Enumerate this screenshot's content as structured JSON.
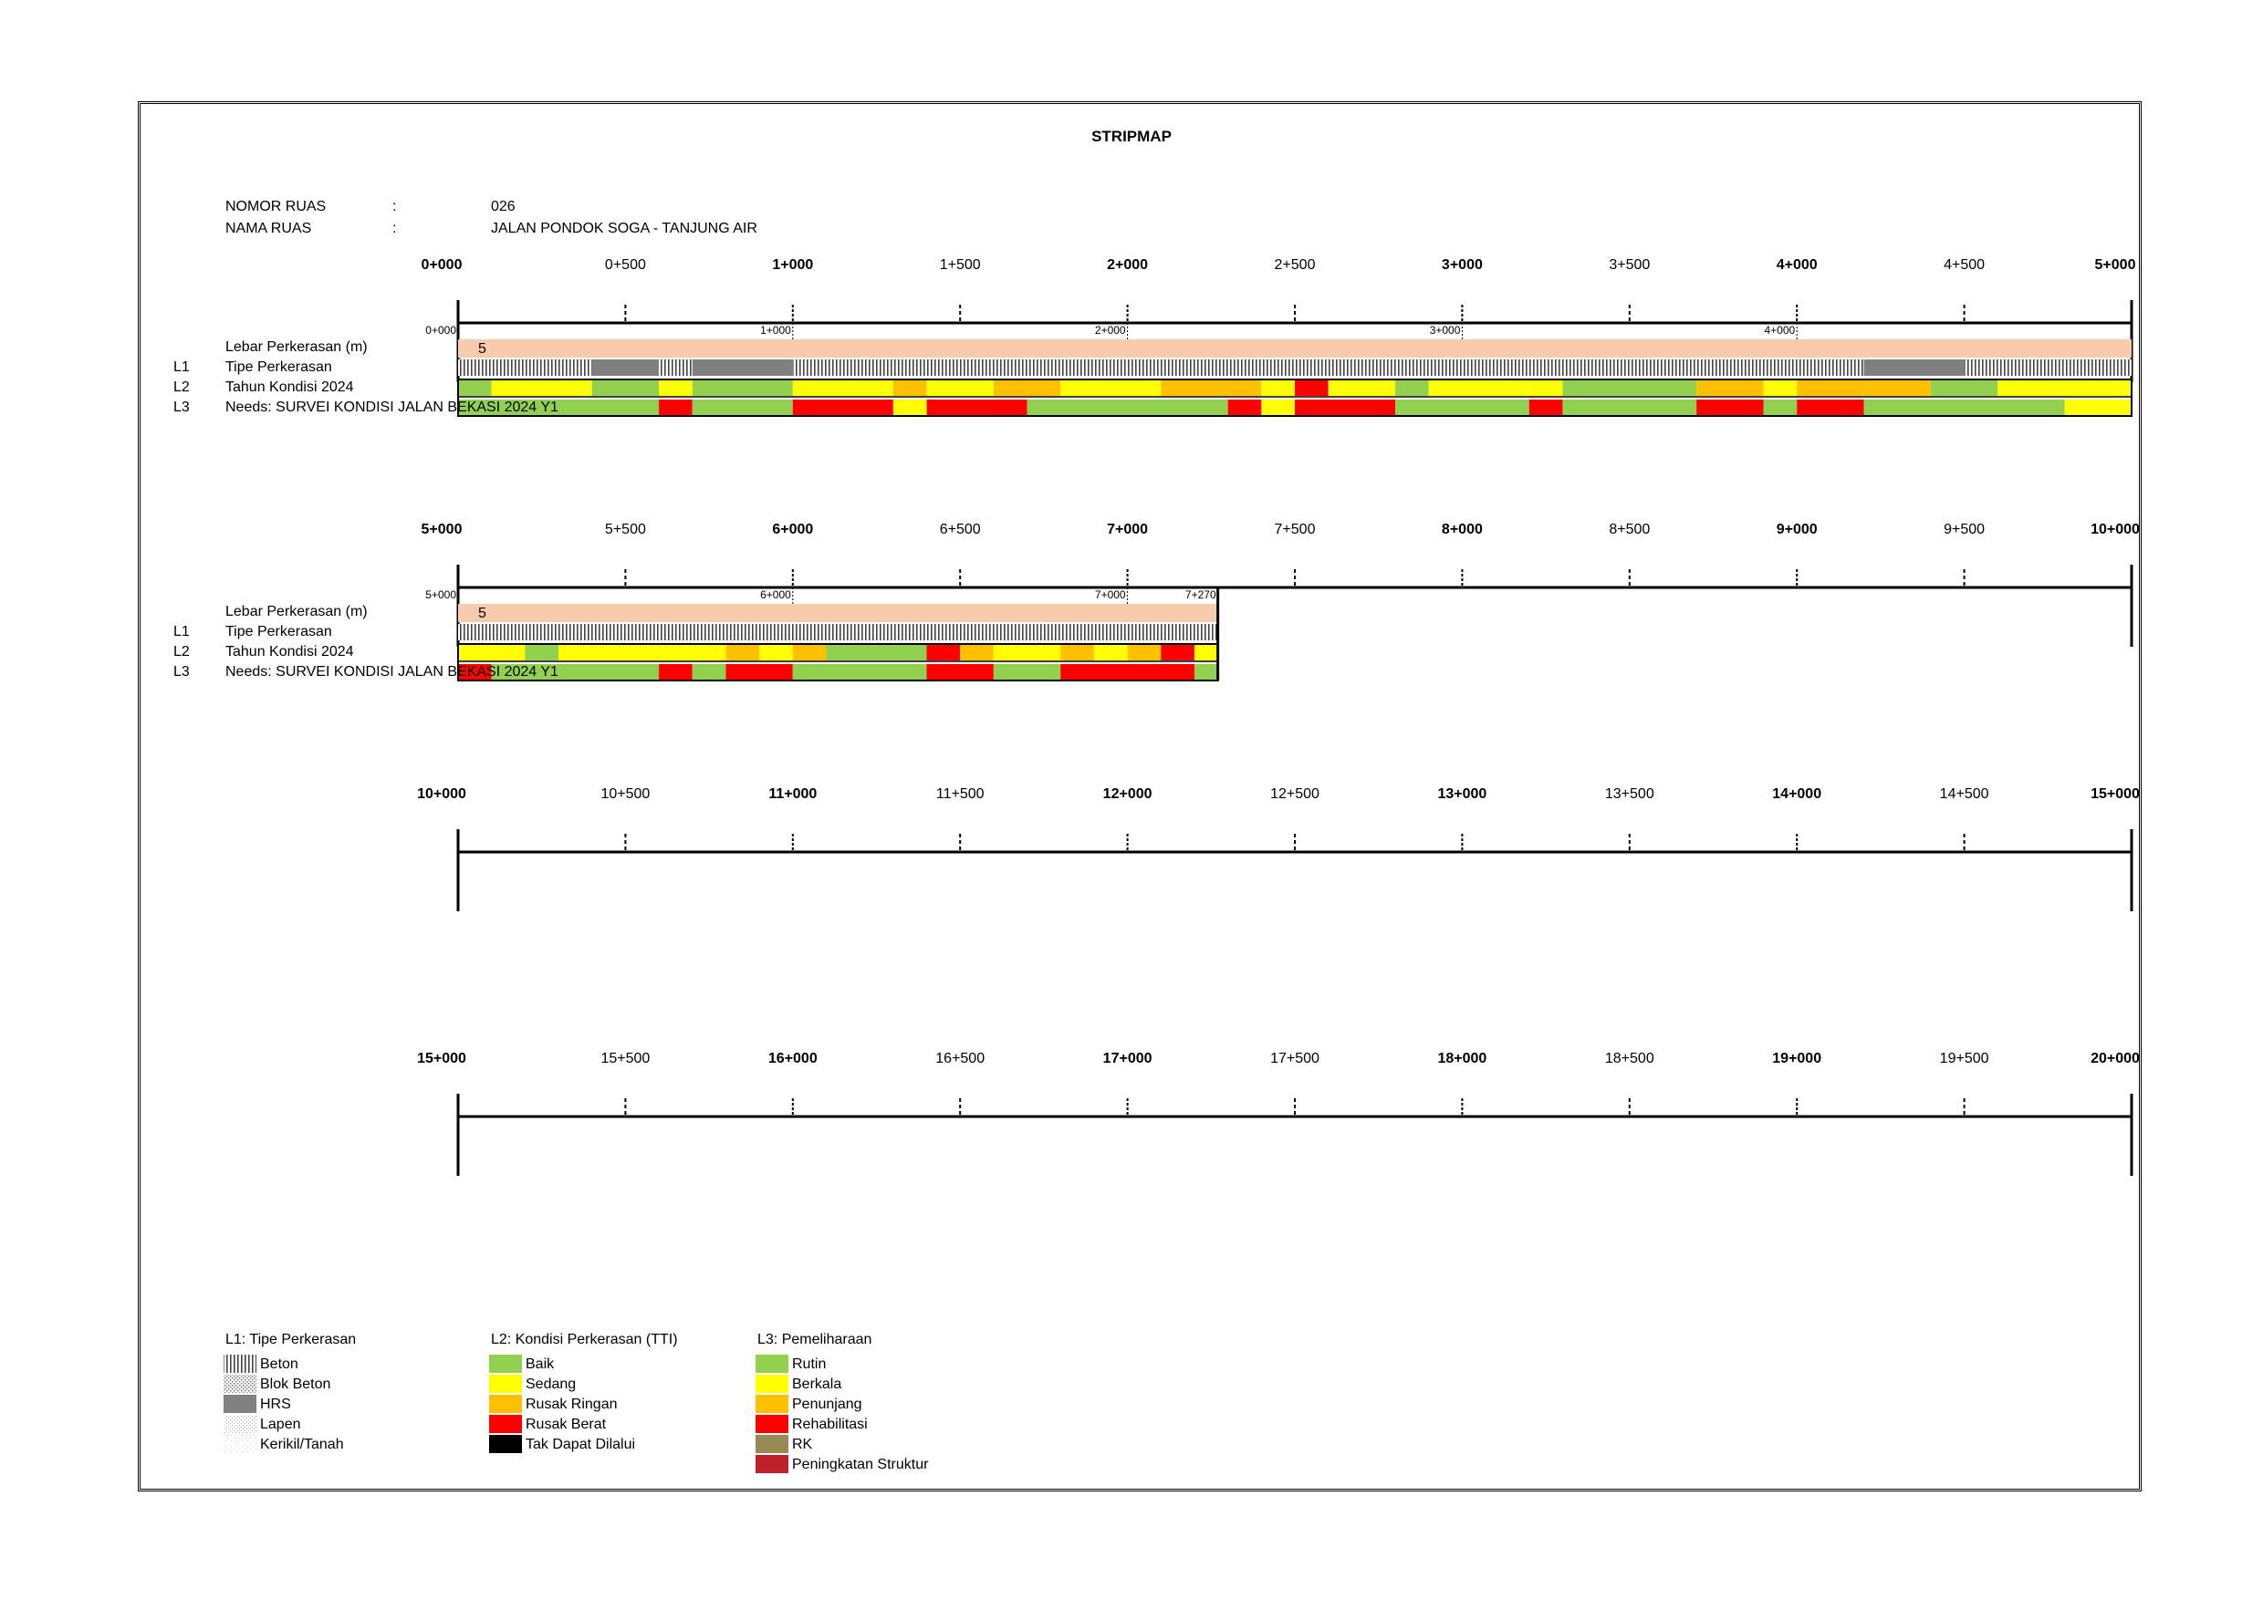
{
  "title": "STRIPMAP",
  "header": {
    "nomor_label": "NOMOR RUAS",
    "nomor_colon": ":",
    "nomor_value": "026",
    "nama_label": "NAMA RUAS",
    "nama_colon": ":",
    "nama_value": "JALAN PONDOK SOGA - TANJUNG AIR"
  },
  "colors": {
    "baik": "#92D050",
    "sedang": "#FFFF00",
    "ringan": "#FFC000",
    "berat": "#FF0000",
    "tak": "#000000",
    "rk": "#948A54",
    "ps": "#C0202A",
    "lebar": "#F8CBAD",
    "hrs": "#808080"
  },
  "chart_data": {
    "type": "stripmap",
    "total_length_km": 7.27,
    "km_per_strip": 5,
    "strip_labels": [
      [
        "0+000",
        "0+500",
        "1+000",
        "1+500",
        "2+000",
        "2+500",
        "3+000",
        "3+500",
        "4+000",
        "4+500",
        "5+000"
      ],
      [
        "5+000",
        "5+500",
        "6+000",
        "6+500",
        "7+000",
        "7+500",
        "8+000",
        "8+500",
        "9+000",
        "9+500",
        "10+000"
      ],
      [
        "10+000",
        "10+500",
        "11+000",
        "11+500",
        "12+000",
        "12+500",
        "13+000",
        "13+500",
        "14+000",
        "14+500",
        "15+000"
      ],
      [
        "15+000",
        "15+500",
        "16+000",
        "16+500",
        "17+000",
        "17+500",
        "18+000",
        "18+500",
        "19+000",
        "19+500",
        "20+000"
      ]
    ],
    "small_km_labels": [
      [
        "0+000",
        "1+000",
        "2+000",
        "3+000",
        "4+000"
      ],
      [
        "5+000",
        "6+000",
        "7+000",
        "7+270"
      ]
    ],
    "row_labels": {
      "lebar": "Lebar Perkerasan (m)",
      "l1": "Tipe Perkerasan",
      "l2": "Tahun Kondisi 2024",
      "l3": "Needs: SURVEI KONDISI JALAN BEKASI 2024 Y1"
    },
    "row_codes": [
      "L1",
      "L2",
      "L3"
    ],
    "lebar_value": "5",
    "l1_segments": [
      [
        0.0,
        0.4,
        "beton"
      ],
      [
        0.4,
        0.6,
        "hrs"
      ],
      [
        0.6,
        0.7,
        "beton"
      ],
      [
        0.7,
        1.0,
        "hrs"
      ],
      [
        1.0,
        4.2,
        "beton"
      ],
      [
        4.2,
        4.5,
        "hrs"
      ],
      [
        4.5,
        7.27,
        "beton"
      ]
    ],
    "l2_segments": [
      [
        0.0,
        0.1,
        "baik"
      ],
      [
        0.1,
        0.4,
        "sedang"
      ],
      [
        0.4,
        0.6,
        "baik"
      ],
      [
        0.6,
        0.7,
        "sedang"
      ],
      [
        0.7,
        1.0,
        "baik"
      ],
      [
        1.0,
        1.3,
        "sedang"
      ],
      [
        1.3,
        1.4,
        "ringan"
      ],
      [
        1.4,
        1.6,
        "sedang"
      ],
      [
        1.6,
        1.8,
        "ringan"
      ],
      [
        1.8,
        2.1,
        "sedang"
      ],
      [
        2.1,
        2.4,
        "ringan"
      ],
      [
        2.4,
        2.5,
        "sedang"
      ],
      [
        2.5,
        2.6,
        "berat"
      ],
      [
        2.6,
        2.8,
        "sedang"
      ],
      [
        2.8,
        2.9,
        "baik"
      ],
      [
        2.9,
        3.3,
        "sedang"
      ],
      [
        3.3,
        3.7,
        "baik"
      ],
      [
        3.7,
        3.9,
        "ringan"
      ],
      [
        3.9,
        4.0,
        "sedang"
      ],
      [
        4.0,
        4.4,
        "ringan"
      ],
      [
        4.4,
        4.6,
        "baik"
      ],
      [
        4.6,
        5.0,
        "sedang"
      ],
      [
        5.0,
        5.2,
        "sedang"
      ],
      [
        5.2,
        5.3,
        "baik"
      ],
      [
        5.3,
        5.8,
        "sedang"
      ],
      [
        5.8,
        5.9,
        "ringan"
      ],
      [
        5.9,
        6.0,
        "sedang"
      ],
      [
        6.0,
        6.1,
        "ringan"
      ],
      [
        6.1,
        6.4,
        "baik"
      ],
      [
        6.4,
        6.5,
        "berat"
      ],
      [
        6.5,
        6.6,
        "ringan"
      ],
      [
        6.6,
        6.8,
        "sedang"
      ],
      [
        6.8,
        6.9,
        "ringan"
      ],
      [
        6.9,
        7.0,
        "sedang"
      ],
      [
        7.0,
        7.1,
        "ringan"
      ],
      [
        7.1,
        7.2,
        "berat"
      ],
      [
        7.2,
        7.27,
        "sedang"
      ]
    ],
    "l3_segments": [
      [
        0.0,
        0.6,
        "baik"
      ],
      [
        0.6,
        0.7,
        "berat"
      ],
      [
        0.7,
        1.0,
        "baik"
      ],
      [
        1.0,
        1.3,
        "berat"
      ],
      [
        1.3,
        1.4,
        "sedang"
      ],
      [
        1.4,
        1.7,
        "berat"
      ],
      [
        1.7,
        2.3,
        "baik"
      ],
      [
        2.3,
        2.4,
        "berat"
      ],
      [
        2.4,
        2.5,
        "sedang"
      ],
      [
        2.5,
        2.8,
        "berat"
      ],
      [
        2.8,
        3.2,
        "baik"
      ],
      [
        3.2,
        3.3,
        "berat"
      ],
      [
        3.3,
        3.7,
        "baik"
      ],
      [
        3.7,
        3.9,
        "berat"
      ],
      [
        3.9,
        4.0,
        "baik"
      ],
      [
        4.0,
        4.2,
        "berat"
      ],
      [
        4.2,
        4.8,
        "baik"
      ],
      [
        4.8,
        5.0,
        "sedang"
      ],
      [
        5.0,
        5.1,
        "berat"
      ],
      [
        5.1,
        5.6,
        "baik"
      ],
      [
        5.6,
        5.7,
        "berat"
      ],
      [
        5.7,
        5.8,
        "baik"
      ],
      [
        5.8,
        6.0,
        "berat"
      ],
      [
        6.0,
        6.4,
        "baik"
      ],
      [
        6.4,
        6.6,
        "berat"
      ],
      [
        6.6,
        6.8,
        "baik"
      ],
      [
        6.8,
        7.2,
        "berat"
      ],
      [
        7.2,
        7.27,
        "baik"
      ]
    ]
  },
  "legend": {
    "l1_title": "L1: Tipe Perkerasan",
    "l1_items": [
      {
        "label": "Beton",
        "pattern": "beton"
      },
      {
        "label": "Blok Beton",
        "pattern": "blok"
      },
      {
        "label": "HRS",
        "pattern": "hrs"
      },
      {
        "label": "Lapen",
        "pattern": "lapen"
      },
      {
        "label": "Kerikil/Tanah",
        "pattern": "kerikil"
      }
    ],
    "l2_title": "L2: Kondisi Perkerasan (TTI)",
    "l2_items": [
      {
        "label": "Baik",
        "color": "#92D050"
      },
      {
        "label": "Sedang",
        "color": "#FFFF00"
      },
      {
        "label": "Rusak Ringan",
        "color": "#FFC000"
      },
      {
        "label": "Rusak Berat",
        "color": "#FF0000"
      },
      {
        "label": "Tak Dapat Dilalui",
        "color": "#000000"
      }
    ],
    "l3_title": "L3: Pemeliharaan",
    "l3_items": [
      {
        "label": "Rutin",
        "color": "#92D050"
      },
      {
        "label": "Berkala",
        "color": "#FFFF00"
      },
      {
        "label": "Penunjang",
        "color": "#FFC000"
      },
      {
        "label": "Rehabilitasi",
        "color": "#FF0000"
      },
      {
        "label": "RK",
        "color": "#948A54"
      },
      {
        "label": "Peningkatan Struktur",
        "color": "#C0202A"
      }
    ]
  }
}
